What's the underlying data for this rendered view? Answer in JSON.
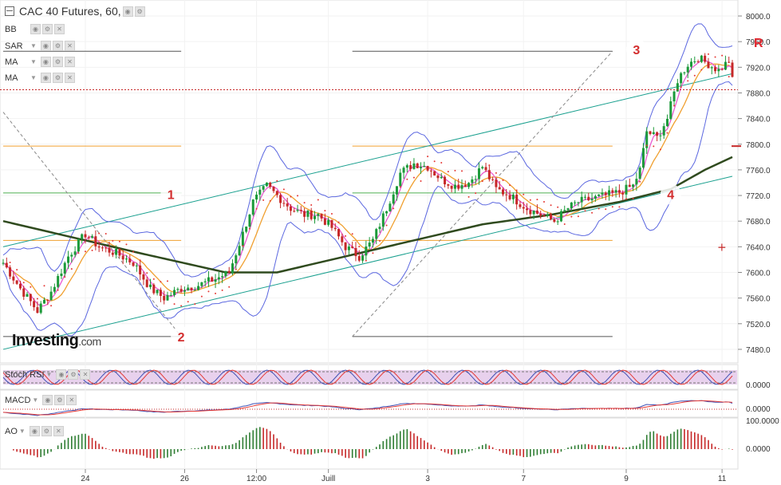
{
  "header": {
    "title": "CAC 40 Futures, 60,",
    "indicators": [
      "BB",
      "SAR",
      "MA",
      "MA"
    ]
  },
  "subpanels": {
    "stoch": {
      "label": "Stoch RSI",
      "value": "0.0000"
    },
    "macd": {
      "label": "MACD",
      "value": "0.0000"
    },
    "ao": {
      "label": "AO",
      "value": "0.0000",
      "top_value": "100.0000"
    }
  },
  "logo": {
    "text": "Investing",
    "suffix": ".com"
  },
  "right_marker": "R",
  "colors": {
    "candle_up": "#1c9a3a",
    "candle_down": "#c62828",
    "bollinger": "#5b67e0",
    "ma_fast": "#ea5bd0",
    "ma_slow": "#f0a030",
    "ma_long": "#2f4a1e",
    "channel": "#1aa08f",
    "sar": "#e53935",
    "fib_orange": "#f0a030",
    "fib_green": "#4caf50",
    "wave_label": "#d32f2f",
    "current_price": "#c62828"
  },
  "chart_data": {
    "type": "candlestick",
    "x_tick_labels": [
      "24",
      "26",
      "12:00",
      "Juill",
      "3",
      "7",
      "9",
      "11"
    ],
    "y_tick_labels": [
      "8000.0",
      "7960.0",
      "7920.0",
      "7880.0",
      "7840.0",
      "7800.0",
      "7760.0",
      "7720.0",
      "7680.0",
      "7640.0",
      "7600.0",
      "7560.0",
      "7520.0",
      "7480.0"
    ],
    "ylim": [
      7465,
      8010
    ],
    "price_path": [
      [
        0,
        7615
      ],
      [
        5,
        7575
      ],
      [
        10,
        7540
      ],
      [
        14,
        7570
      ],
      [
        19,
        7625
      ],
      [
        24,
        7660
      ],
      [
        28,
        7640
      ],
      [
        33,
        7630
      ],
      [
        38,
        7615
      ],
      [
        43,
        7575
      ],
      [
        47,
        7560
      ],
      [
        52,
        7575
      ],
      [
        57,
        7580
      ],
      [
        62,
        7590
      ],
      [
        66,
        7600
      ],
      [
        70,
        7660
      ],
      [
        73,
        7710
      ],
      [
        77,
        7735
      ],
      [
        80,
        7720
      ],
      [
        84,
        7700
      ],
      [
        88,
        7690
      ],
      [
        92,
        7690
      ],
      [
        96,
        7670
      ],
      [
        100,
        7640
      ],
      [
        104,
        7625
      ],
      [
        108,
        7650
      ],
      [
        112,
        7700
      ],
      [
        116,
        7755
      ],
      [
        120,
        7770
      ],
      [
        124,
        7765
      ],
      [
        128,
        7745
      ],
      [
        132,
        7735
      ],
      [
        136,
        7740
      ],
      [
        140,
        7765
      ],
      [
        144,
        7730
      ],
      [
        148,
        7720
      ],
      [
        153,
        7700
      ],
      [
        157,
        7690
      ],
      [
        161,
        7680
      ],
      [
        165,
        7700
      ],
      [
        168,
        7710
      ],
      [
        172,
        7715
      ],
      [
        176,
        7720
      ],
      [
        180,
        7725
      ],
      [
        184,
        7735
      ],
      [
        186,
        7760
      ],
      [
        188,
        7820
      ],
      [
        191,
        7810
      ],
      [
        194,
        7840
      ],
      [
        197,
        7900
      ],
      [
        200,
        7925
      ],
      [
        203,
        7935
      ],
      [
        206,
        7925
      ],
      [
        209,
        7915
      ],
      [
        212,
        7930
      ],
      [
        213,
        7905
      ]
    ],
    "ma_long_path": [
      [
        0,
        7680
      ],
      [
        20,
        7655
      ],
      [
        40,
        7630
      ],
      [
        65,
        7600
      ],
      [
        80,
        7600
      ],
      [
        100,
        7625
      ],
      [
        120,
        7650
      ],
      [
        140,
        7675
      ],
      [
        160,
        7690
      ],
      [
        180,
        7710
      ],
      [
        195,
        7730
      ],
      [
        205,
        7760
      ],
      [
        213,
        7780
      ]
    ],
    "channel_upper": [
      [
        0,
        7640
      ],
      [
        213,
        7910
      ]
    ],
    "channel_lower": [
      [
        0,
        7480
      ],
      [
        213,
        7750
      ]
    ],
    "fib_levels": [
      {
        "price": 7945,
        "color": "#555555",
        "x_ranges": [
          [
            0,
            52
          ],
          [
            102,
            178
          ]
        ]
      },
      {
        "price": 7797,
        "color": "#f0a030",
        "x_ranges": [
          [
            0,
            52
          ],
          [
            102,
            178
          ]
        ]
      },
      {
        "price": 7724,
        "color": "#4caf50",
        "x_ranges": [
          [
            0,
            52
          ],
          [
            102,
            178
          ]
        ]
      },
      {
        "price": 7650,
        "color": "#f0a030",
        "x_ranges": [
          [
            0,
            52
          ],
          [
            102,
            178
          ]
        ]
      },
      {
        "price": 7500,
        "color": "#555555",
        "x_ranges": [
          [
            0,
            52
          ],
          [
            102,
            178
          ]
        ]
      }
    ],
    "current_price": 7885,
    "wave_labels": [
      {
        "text": "1",
        "x": 49,
        "price": 7722
      },
      {
        "text": "2",
        "x": 52,
        "price": 7500
      },
      {
        "text": "3",
        "x": 185,
        "price": 7948
      },
      {
        "text": "4",
        "x": 195,
        "price": 7722
      }
    ],
    "x_ticks_at": [
      24,
      53,
      74,
      95,
      124,
      152,
      182,
      210
    ],
    "x_count": 214
  }
}
